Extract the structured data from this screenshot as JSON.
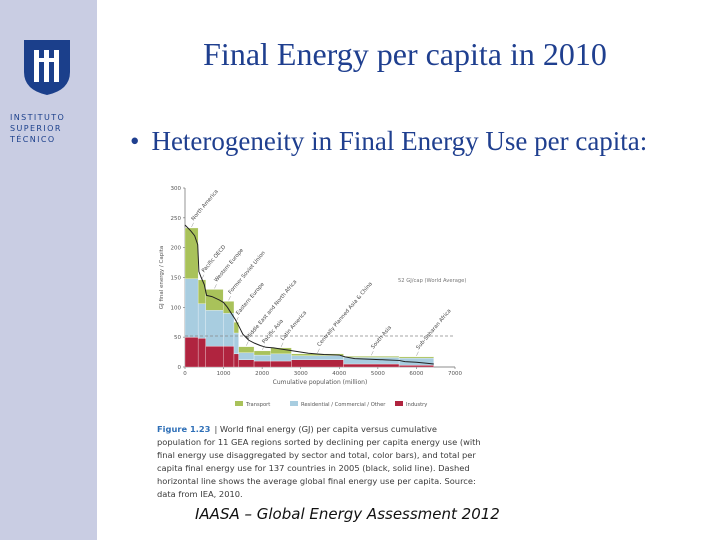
{
  "slide": {
    "title": "Final Energy per capita in 2010",
    "bullet": "Heterogeneity in Final Energy Use per capita:",
    "source": "IAASA – Global Energy Assessment 2012"
  },
  "logo": {
    "lines": [
      "INSTITUTO",
      "SUPERIOR",
      "TÉCNICO"
    ],
    "colors": {
      "sidebar": "#c9cde3",
      "logo": "#1b3f8b"
    }
  },
  "caption": {
    "figure_label": "Figure 1.23",
    "text": "| World final energy (GJ) per capita versus cumulative population for 11 GEA regions sorted by declining per capita energy use (with final energy use disaggregated by sector and total, color bars), and total per capita final energy use for 137 countries in 2005 (black, solid line). Dashed horizontal line shows the average global final energy use per capita. Source: data from IEA, 2010."
  },
  "chart_data": {
    "type": "bar",
    "ylabel": "GJ final energy / Capita",
    "xlabel": "Cumulative population (million)",
    "xlim": [
      0,
      7000
    ],
    "ylim": [
      0,
      300
    ],
    "x_ticks": [
      0,
      1000,
      2000,
      3000,
      4000,
      5000,
      6000,
      7000
    ],
    "y_ticks": [
      0,
      50,
      100,
      150,
      200,
      250,
      300
    ],
    "average_line": {
      "value": 52,
      "label": "52 GJ/cap (World Average)"
    },
    "legend": [
      "Transport",
      "Residential / Commercial / Other",
      "Industry"
    ],
    "colors": {
      "Transport": "#a9c25a",
      "Residential / Commercial / Other": "#a8cde0",
      "Industry": "#b0243f",
      "Total": "#222222",
      "Average": "#888888"
    },
    "regions": [
      {
        "name": "North America",
        "pop_start": 0,
        "pop_end": 340,
        "industry": 50,
        "residential": 98,
        "transport": 85
      },
      {
        "name": "Pacific OECD",
        "pop_start": 340,
        "pop_end": 540,
        "industry": 48,
        "residential": 58,
        "transport": 40
      },
      {
        "name": "Western Europe",
        "pop_start": 540,
        "pop_end": 990,
        "industry": 35,
        "residential": 60,
        "transport": 35
      },
      {
        "name": "Former Soviet Union",
        "pop_start": 990,
        "pop_end": 1270,
        "industry": 35,
        "residential": 55,
        "transport": 20
      },
      {
        "name": "Eastern Europe",
        "pop_start": 1270,
        "pop_end": 1390,
        "industry": 22,
        "residential": 35,
        "transport": 18
      },
      {
        "name": "Middle East and North Africa",
        "pop_start": 1390,
        "pop_end": 1790,
        "industry": 12,
        "residential": 12,
        "transport": 10
      },
      {
        "name": "Pacific Asia",
        "pop_start": 1790,
        "pop_end": 2220,
        "industry": 10,
        "residential": 10,
        "transport": 7
      },
      {
        "name": "Latin America",
        "pop_start": 2220,
        "pop_end": 2760,
        "industry": 10,
        "residential": 12,
        "transport": 10
      },
      {
        "name": "Centrally Planned Asia & China",
        "pop_start": 2760,
        "pop_end": 4110,
        "industry": 12,
        "residential": 7,
        "transport": 3
      },
      {
        "name": "South Asia",
        "pop_start": 4110,
        "pop_end": 5550,
        "industry": 5,
        "residential": 11,
        "transport": 2
      },
      {
        "name": "Sub-Saharan Africa",
        "pop_start": 5550,
        "pop_end": 6450,
        "industry": 3,
        "residential": 12,
        "transport": 2
      }
    ],
    "total_line": {
      "x": [
        0,
        150,
        250,
        330,
        360,
        420,
        500,
        560,
        700,
        900,
        1000,
        1100,
        1200,
        1300,
        1400,
        1500,
        1650,
        1800,
        1950,
        2100,
        2300,
        2500,
        2700,
        2800,
        3200,
        3600,
        4000,
        4150,
        4400,
        4800,
        5200,
        5550,
        5700,
        6000,
        6300,
        6450
      ],
      "y": [
        238,
        228,
        220,
        205,
        160,
        150,
        138,
        120,
        118,
        112,
        108,
        100,
        90,
        80,
        68,
        55,
        45,
        40,
        36,
        33,
        32,
        30,
        28,
        27,
        23,
        21,
        20,
        17,
        14,
        13,
        12,
        11,
        9,
        8,
        6,
        5
      ]
    }
  }
}
